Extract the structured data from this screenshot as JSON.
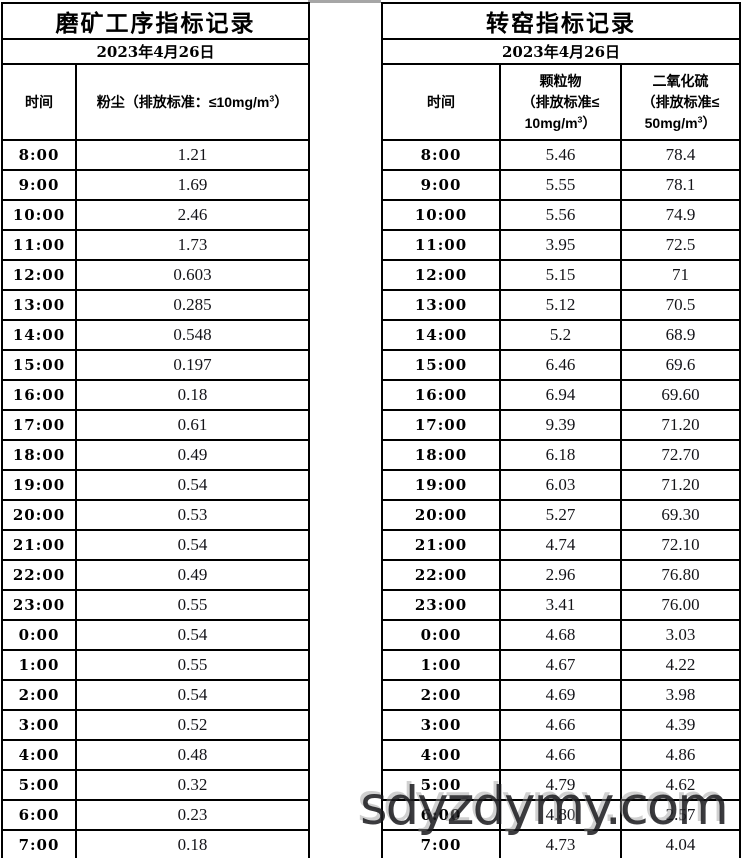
{
  "left_table": {
    "title": "磨矿工序指标记录",
    "date": "2023年4月26日",
    "time_header": "时间",
    "value_header": {
      "pre": "粉尘（排放标准：≤10mg/m",
      "sup": "3",
      "post": "）"
    },
    "rows": [
      {
        "time": "8:00",
        "value": "1.21"
      },
      {
        "time": "9:00",
        "value": "1.69"
      },
      {
        "time": "10:00",
        "value": "2.46"
      },
      {
        "time": "11:00",
        "value": "1.73"
      },
      {
        "time": "12:00",
        "value": "0.603"
      },
      {
        "time": "13:00",
        "value": "0.285"
      },
      {
        "time": "14:00",
        "value": "0.548"
      },
      {
        "time": "15:00",
        "value": "0.197"
      },
      {
        "time": "16:00",
        "value": "0.18"
      },
      {
        "time": "17:00",
        "value": "0.61"
      },
      {
        "time": "18:00",
        "value": "0.49"
      },
      {
        "time": "19:00",
        "value": "0.54"
      },
      {
        "time": "20:00",
        "value": "0.53"
      },
      {
        "time": "21:00",
        "value": "0.54"
      },
      {
        "time": "22:00",
        "value": "0.49"
      },
      {
        "time": "23:00",
        "value": "0.55"
      },
      {
        "time": "0:00",
        "value": "0.54"
      },
      {
        "time": "1:00",
        "value": "0.55"
      },
      {
        "time": "2:00",
        "value": "0.54"
      },
      {
        "time": "3:00",
        "value": "0.52"
      },
      {
        "time": "4:00",
        "value": "0.48"
      },
      {
        "time": "5:00",
        "value": "0.32"
      },
      {
        "time": "6:00",
        "value": "0.23"
      },
      {
        "time": "7:00",
        "value": "0.18"
      }
    ]
  },
  "right_table": {
    "title": "转窑指标记录",
    "date": "2023年4月26日",
    "time_header": "时间",
    "pm_header": {
      "line1": "颗粒物",
      "line2": "（排放标准≤",
      "line3_pre": "10mg/m",
      "sup": "3",
      "line3_post": "）"
    },
    "so2_header": {
      "line1": "二氧化硫",
      "line2": "（排放标准≤",
      "line3_pre": "50mg/m",
      "sup": "3",
      "line3_post": "）"
    },
    "rows": [
      {
        "time": "8:00",
        "pm": "5.46",
        "so2": "78.4"
      },
      {
        "time": "9:00",
        "pm": "5.55",
        "so2": "78.1"
      },
      {
        "time": "10:00",
        "pm": "5.56",
        "so2": "74.9"
      },
      {
        "time": "11:00",
        "pm": "3.95",
        "so2": "72.5"
      },
      {
        "time": "12:00",
        "pm": "5.15",
        "so2": "71"
      },
      {
        "time": "13:00",
        "pm": "5.12",
        "so2": "70.5"
      },
      {
        "time": "14:00",
        "pm": "5.2",
        "so2": "68.9"
      },
      {
        "time": "15:00",
        "pm": "6.46",
        "so2": "69.6"
      },
      {
        "time": "16:00",
        "pm": "6.94",
        "so2": "69.60"
      },
      {
        "time": "17:00",
        "pm": "9.39",
        "so2": "71.20"
      },
      {
        "time": "18:00",
        "pm": "6.18",
        "so2": "72.70"
      },
      {
        "time": "19:00",
        "pm": "6.03",
        "so2": "71.20"
      },
      {
        "time": "20:00",
        "pm": "5.27",
        "so2": "69.30"
      },
      {
        "time": "21:00",
        "pm": "4.74",
        "so2": "72.10"
      },
      {
        "time": "22:00",
        "pm": "2.96",
        "so2": "76.80"
      },
      {
        "time": "23:00",
        "pm": "3.41",
        "so2": "76.00"
      },
      {
        "time": "0:00",
        "pm": "4.68",
        "so2": "3.03"
      },
      {
        "time": "1:00",
        "pm": "4.67",
        "so2": "4.22"
      },
      {
        "time": "2:00",
        "pm": "4.69",
        "so2": "3.98"
      },
      {
        "time": "3:00",
        "pm": "4.66",
        "so2": "4.39"
      },
      {
        "time": "4:00",
        "pm": "4.66",
        "so2": "4.86"
      },
      {
        "time": "5:00",
        "pm": "4.79",
        "so2": "4.62"
      },
      {
        "time": "6:00",
        "pm": "4.80",
        "so2": "2.57"
      },
      {
        "time": "7:00",
        "pm": "4.73",
        "so2": "4.04"
      }
    ]
  },
  "watermark": {
    "text": "sdyzdymy.com"
  },
  "colors": {
    "border": "#000000",
    "text": "#000000",
    "value_text": "#131318",
    "watermark": "#19191c",
    "background": "#ffffff"
  }
}
